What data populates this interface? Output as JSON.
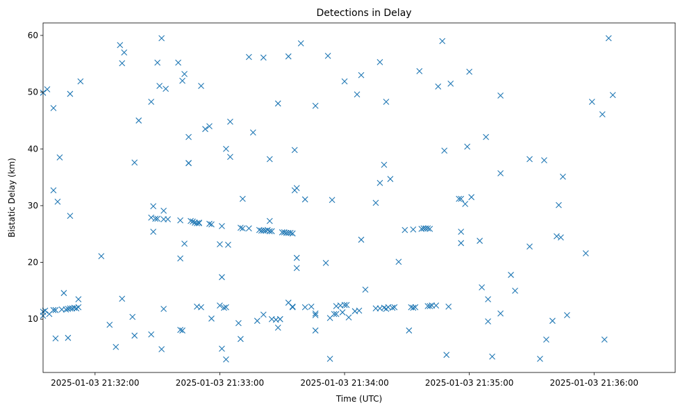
{
  "chart_data": {
    "type": "scatter",
    "title": "Detections in Delay",
    "xlabel": "Time (UTC)",
    "ylabel": "Bistatic Delay (km)",
    "marker": "x",
    "color": "#1f77b4",
    "grid": false,
    "x_ticks": [
      "2025-01-03 21:32:00",
      "2025-01-03 21:33:00",
      "2025-01-03 21:34:00",
      "2025-01-03 21:35:00",
      "2025-01-03 21:36:00"
    ],
    "y_ticks": [
      10,
      20,
      30,
      40,
      50,
      60
    ],
    "xlim": [
      "2025-01-03 21:31:35",
      "2025-01-03 21:36:39"
    ],
    "ylim": [
      0.6,
      62.2
    ],
    "points": [
      [
        "2025-01-03 21:31:35",
        49.9
      ],
      [
        "2025-01-03 21:31:37",
        50.5
      ],
      [
        "2025-01-03 21:31:40",
        47.2
      ],
      [
        "2025-01-03 21:31:40",
        32.7
      ],
      [
        "2025-01-03 21:31:42",
        30.7
      ],
      [
        "2025-01-03 21:31:43",
        38.5
      ],
      [
        "2025-01-03 21:31:35",
        11.3
      ],
      [
        "2025-01-03 21:31:35",
        10.6
      ],
      [
        "2025-01-03 21:31:36",
        11.5
      ],
      [
        "2025-01-03 21:31:38",
        10.9
      ],
      [
        "2025-01-03 21:31:40",
        11.6
      ],
      [
        "2025-01-03 21:31:41",
        11.6
      ],
      [
        "2025-01-03 21:31:41",
        6.6
      ],
      [
        "2025-01-03 21:31:44",
        11.7
      ],
      [
        "2025-01-03 21:31:45",
        14.6
      ],
      [
        "2025-01-03 21:31:46",
        11.7
      ],
      [
        "2025-01-03 21:31:47",
        11.8
      ],
      [
        "2025-01-03 21:31:47",
        6.7
      ],
      [
        "2025-01-03 21:31:48",
        11.9
      ],
      [
        "2025-01-03 21:31:49",
        11.9
      ],
      [
        "2025-01-03 21:31:50",
        12.0
      ],
      [
        "2025-01-03 21:31:51",
        11.9
      ],
      [
        "2025-01-03 21:31:52",
        12.1
      ],
      [
        "2025-01-03 21:31:52",
        13.5
      ],
      [
        "2025-01-03 21:31:48",
        49.7
      ],
      [
        "2025-01-03 21:31:53",
        51.9
      ],
      [
        "2025-01-03 21:31:48",
        28.2
      ],
      [
        "2025-01-03 21:32:03",
        21.1
      ],
      [
        "2025-01-03 21:32:07",
        9.0
      ],
      [
        "2025-01-03 21:32:10",
        5.1
      ],
      [
        "2025-01-03 21:32:12",
        58.3
      ],
      [
        "2025-01-03 21:32:13",
        55.1
      ],
      [
        "2025-01-03 21:32:14",
        57.0
      ],
      [
        "2025-01-03 21:32:13",
        13.6
      ],
      [
        "2025-01-03 21:32:18",
        10.4
      ],
      [
        "2025-01-03 21:32:19",
        37.6
      ],
      [
        "2025-01-03 21:32:19",
        7.1
      ],
      [
        "2025-01-03 21:32:21",
        45.0
      ],
      [
        "2025-01-03 21:32:27",
        48.3
      ],
      [
        "2025-01-03 21:32:27",
        27.9
      ],
      [
        "2025-01-03 21:32:27",
        7.3
      ],
      [
        "2025-01-03 21:32:28",
        25.4
      ],
      [
        "2025-01-03 21:32:28",
        29.9
      ],
      [
        "2025-01-03 21:32:29",
        27.7
      ],
      [
        "2025-01-03 21:32:30",
        27.7
      ],
      [
        "2025-01-03 21:32:30",
        55.2
      ],
      [
        "2025-01-03 21:32:31",
        51.1
      ],
      [
        "2025-01-03 21:32:32",
        59.5
      ],
      [
        "2025-01-03 21:32:32",
        4.7
      ],
      [
        "2025-01-03 21:32:33",
        11.8
      ],
      [
        "2025-01-03 21:32:33",
        27.6
      ],
      [
        "2025-01-03 21:32:33",
        29.1
      ],
      [
        "2025-01-03 21:32:34",
        50.6
      ],
      [
        "2025-01-03 21:32:35",
        27.6
      ],
      [
        "2025-01-03 21:32:40",
        55.2
      ],
      [
        "2025-01-03 21:32:41",
        27.4
      ],
      [
        "2025-01-03 21:32:41",
        8.1
      ],
      [
        "2025-01-03 21:32:41",
        20.7
      ],
      [
        "2025-01-03 21:32:42",
        52.0
      ],
      [
        "2025-01-03 21:32:42",
        8.0
      ],
      [
        "2025-01-03 21:32:43",
        23.3
      ],
      [
        "2025-01-03 21:32:43",
        53.2
      ],
      [
        "2025-01-03 21:32:45",
        42.1
      ],
      [
        "2025-01-03 21:32:45",
        37.5
      ],
      [
        "2025-01-03 21:32:45",
        37.5
      ],
      [
        "2025-01-03 21:32:46",
        27.3
      ],
      [
        "2025-01-03 21:32:47",
        27.2
      ],
      [
        "2025-01-03 21:32:48",
        27.0
      ],
      [
        "2025-01-03 21:32:49",
        26.9
      ],
      [
        "2025-01-03 21:32:50",
        27.0
      ],
      [
        "2025-01-03 21:32:50",
        26.9
      ],
      [
        "2025-01-03 21:32:49",
        12.2
      ],
      [
        "2025-01-03 21:32:51",
        12.1
      ],
      [
        "2025-01-03 21:32:51",
        51.1
      ],
      [
        "2025-01-03 21:32:53",
        43.5
      ],
      [
        "2025-01-03 21:32:55",
        44.0
      ],
      [
        "2025-01-03 21:32:55",
        26.8
      ],
      [
        "2025-01-03 21:32:56",
        26.7
      ],
      [
        "2025-01-03 21:32:56",
        10.1
      ],
      [
        "2025-01-03 21:33:00",
        23.2
      ],
      [
        "2025-01-03 21:33:00",
        12.4
      ],
      [
        "2025-01-03 21:33:01",
        26.4
      ],
      [
        "2025-01-03 21:33:01",
        17.4
      ],
      [
        "2025-01-03 21:33:01",
        4.8
      ],
      [
        "2025-01-03 21:33:02",
        12.0
      ],
      [
        "2025-01-03 21:33:03",
        12.1
      ],
      [
        "2025-01-03 21:33:03",
        40.0
      ],
      [
        "2025-01-03 21:33:03",
        2.9
      ],
      [
        "2025-01-03 21:33:04",
        23.1
      ],
      [
        "2025-01-03 21:33:05",
        38.6
      ],
      [
        "2025-01-03 21:33:05",
        44.8
      ],
      [
        "2025-01-03 21:33:09",
        9.3
      ],
      [
        "2025-01-03 21:33:10",
        6.5
      ],
      [
        "2025-01-03 21:33:10",
        26.1
      ],
      [
        "2025-01-03 21:33:11",
        26.0
      ],
      [
        "2025-01-03 21:33:11",
        31.2
      ],
      [
        "2025-01-03 21:33:14",
        56.2
      ],
      [
        "2025-01-03 21:33:14",
        26.0
      ],
      [
        "2025-01-03 21:33:16",
        42.9
      ],
      [
        "2025-01-03 21:33:18",
        9.7
      ],
      [
        "2025-01-03 21:33:19",
        25.7
      ],
      [
        "2025-01-03 21:33:20",
        25.6
      ],
      [
        "2025-01-03 21:33:21",
        25.6
      ],
      [
        "2025-01-03 21:33:22",
        25.6
      ],
      [
        "2025-01-03 21:33:21",
        10.8
      ],
      [
        "2025-01-03 21:33:21",
        56.1
      ],
      [
        "2025-01-03 21:33:23",
        25.7
      ],
      [
        "2025-01-03 21:33:24",
        25.5
      ],
      [
        "2025-01-03 21:33:24",
        27.3
      ],
      [
        "2025-01-03 21:33:24",
        38.2
      ],
      [
        "2025-01-03 21:33:25",
        25.5
      ],
      [
        "2025-01-03 21:33:25",
        10.0
      ],
      [
        "2025-01-03 21:33:27",
        9.9
      ],
      [
        "2025-01-03 21:33:28",
        48.0
      ],
      [
        "2025-01-03 21:33:28",
        8.5
      ],
      [
        "2025-01-03 21:33:29",
        10.0
      ],
      [
        "2025-01-03 21:33:29",
        10.0
      ],
      [
        "2025-01-03 21:33:30",
        25.3
      ],
      [
        "2025-01-03 21:33:31",
        25.3
      ],
      [
        "2025-01-03 21:33:32",
        25.2
      ],
      [
        "2025-01-03 21:33:33",
        25.2
      ],
      [
        "2025-01-03 21:33:33",
        56.3
      ],
      [
        "2025-01-03 21:33:33",
        12.9
      ],
      [
        "2025-01-03 21:33:34",
        25.2
      ],
      [
        "2025-01-03 21:33:35",
        25.1
      ],
      [
        "2025-01-03 21:33:35",
        12.2
      ],
      [
        "2025-01-03 21:33:35",
        12.1
      ],
      [
        "2025-01-03 21:33:36",
        39.8
      ],
      [
        "2025-01-03 21:33:36",
        32.7
      ],
      [
        "2025-01-03 21:33:37",
        33.1
      ],
      [
        "2025-01-03 21:33:37",
        20.8
      ],
      [
        "2025-01-03 21:33:37",
        19.0
      ],
      [
        "2025-01-03 21:33:39",
        58.6
      ],
      [
        "2025-01-03 21:33:41",
        31.1
      ],
      [
        "2025-01-03 21:33:41",
        12.1
      ],
      [
        "2025-01-03 21:33:44",
        12.2
      ],
      [
        "2025-01-03 21:33:46",
        10.7
      ],
      [
        "2025-01-03 21:33:46",
        11.0
      ],
      [
        "2025-01-03 21:33:46",
        8.0
      ],
      [
        "2025-01-03 21:33:46",
        47.6
      ],
      [
        "2025-01-03 21:33:51",
        19.9
      ],
      [
        "2025-01-03 21:33:52",
        56.4
      ],
      [
        "2025-01-03 21:33:53",
        3.0
      ],
      [
        "2025-01-03 21:33:53",
        10.2
      ],
      [
        "2025-01-03 21:33:54",
        31.0
      ],
      [
        "2025-01-03 21:33:55",
        10.9
      ],
      [
        "2025-01-03 21:33:56",
        12.3
      ],
      [
        "2025-01-03 21:33:56",
        10.9
      ],
      [
        "2025-01-03 21:33:58",
        12.4
      ],
      [
        "2025-01-03 21:33:59",
        11.2
      ],
      [
        "2025-01-03 21:34:00",
        12.5
      ],
      [
        "2025-01-03 21:34:00",
        51.9
      ],
      [
        "2025-01-03 21:34:01",
        12.5
      ],
      [
        "2025-01-03 21:34:02",
        10.3
      ],
      [
        "2025-01-03 21:34:05",
        11.4
      ],
      [
        "2025-01-03 21:34:06",
        49.6
      ],
      [
        "2025-01-03 21:34:07",
        11.5
      ],
      [
        "2025-01-03 21:34:08",
        53.0
      ],
      [
        "2025-01-03 21:34:08",
        24.0
      ],
      [
        "2025-01-03 21:34:10",
        15.2
      ],
      [
        "2025-01-03 21:34:15",
        30.5
      ],
      [
        "2025-01-03 21:34:15",
        11.9
      ],
      [
        "2025-01-03 21:34:17",
        55.3
      ],
      [
        "2025-01-03 21:34:17",
        11.9
      ],
      [
        "2025-01-03 21:34:17",
        34.0
      ],
      [
        "2025-01-03 21:34:19",
        12.0
      ],
      [
        "2025-01-03 21:34:19",
        37.2
      ],
      [
        "2025-01-03 21:34:20",
        48.3
      ],
      [
        "2025-01-03 21:34:20",
        11.8
      ],
      [
        "2025-01-03 21:34:21",
        12.1
      ],
      [
        "2025-01-03 21:34:22",
        34.7
      ],
      [
        "2025-01-03 21:34:23",
        12.0
      ],
      [
        "2025-01-03 21:34:24",
        12.1
      ],
      [
        "2025-01-03 21:34:26",
        20.1
      ],
      [
        "2025-01-03 21:34:29",
        25.7
      ],
      [
        "2025-01-03 21:34:31",
        8.0
      ],
      [
        "2025-01-03 21:34:32",
        12.1
      ],
      [
        "2025-01-03 21:34:33",
        25.8
      ],
      [
        "2025-01-03 21:34:33",
        12.0
      ],
      [
        "2025-01-03 21:34:34",
        12.1
      ],
      [
        "2025-01-03 21:34:36",
        53.7
      ],
      [
        "2025-01-03 21:34:37",
        25.9
      ],
      [
        "2025-01-03 21:34:38",
        26.0
      ],
      [
        "2025-01-03 21:34:39",
        26.0
      ],
      [
        "2025-01-03 21:34:40",
        12.3
      ],
      [
        "2025-01-03 21:34:40",
        26.0
      ],
      [
        "2025-01-03 21:34:41",
        12.3
      ],
      [
        "2025-01-03 21:34:41",
        25.9
      ],
      [
        "2025-01-03 21:34:42",
        12.4
      ],
      [
        "2025-01-03 21:34:44",
        12.4
      ],
      [
        "2025-01-03 21:34:45",
        51.0
      ],
      [
        "2025-01-03 21:34:47",
        59.0
      ],
      [
        "2025-01-03 21:34:48",
        39.7
      ],
      [
        "2025-01-03 21:34:49",
        3.7
      ],
      [
        "2025-01-03 21:34:50",
        12.2
      ],
      [
        "2025-01-03 21:34:51",
        51.5
      ],
      [
        "2025-01-03 21:34:55",
        31.2
      ],
      [
        "2025-01-03 21:34:56",
        31.2
      ],
      [
        "2025-01-03 21:34:56",
        25.4
      ],
      [
        "2025-01-03 21:34:56",
        23.4
      ],
      [
        "2025-01-03 21:34:58",
        30.3
      ],
      [
        "2025-01-03 21:34:59",
        40.4
      ],
      [
        "2025-01-03 21:35:00",
        53.6
      ],
      [
        "2025-01-03 21:35:01",
        31.5
      ],
      [
        "2025-01-03 21:35:05",
        23.8
      ],
      [
        "2025-01-03 21:35:06",
        15.6
      ],
      [
        "2025-01-03 21:35:08",
        42.1
      ],
      [
        "2025-01-03 21:35:09",
        9.6
      ],
      [
        "2025-01-03 21:35:09",
        13.5
      ],
      [
        "2025-01-03 21:35:11",
        3.4
      ],
      [
        "2025-01-03 21:35:15",
        49.4
      ],
      [
        "2025-01-03 21:35:15",
        35.7
      ],
      [
        "2025-01-03 21:35:15",
        11.0
      ],
      [
        "2025-01-03 21:35:20",
        17.8
      ],
      [
        "2025-01-03 21:35:22",
        15.0
      ],
      [
        "2025-01-03 21:35:29",
        38.2
      ],
      [
        "2025-01-03 21:35:29",
        22.8
      ],
      [
        "2025-01-03 21:35:34",
        3.0
      ],
      [
        "2025-01-03 21:35:36",
        38.0
      ],
      [
        "2025-01-03 21:35:37",
        6.4
      ],
      [
        "2025-01-03 21:35:40",
        9.7
      ],
      [
        "2025-01-03 21:35:42",
        24.6
      ],
      [
        "2025-01-03 21:35:43",
        30.1
      ],
      [
        "2025-01-03 21:35:44",
        24.4
      ],
      [
        "2025-01-03 21:35:45",
        35.1
      ],
      [
        "2025-01-03 21:35:47",
        10.7
      ],
      [
        "2025-01-03 21:35:56",
        21.6
      ],
      [
        "2025-01-03 21:35:59",
        48.3
      ],
      [
        "2025-01-03 21:36:04",
        46.1
      ],
      [
        "2025-01-03 21:36:05",
        6.4
      ],
      [
        "2025-01-03 21:36:07",
        59.5
      ],
      [
        "2025-01-03 21:36:09",
        49.5
      ]
    ]
  }
}
